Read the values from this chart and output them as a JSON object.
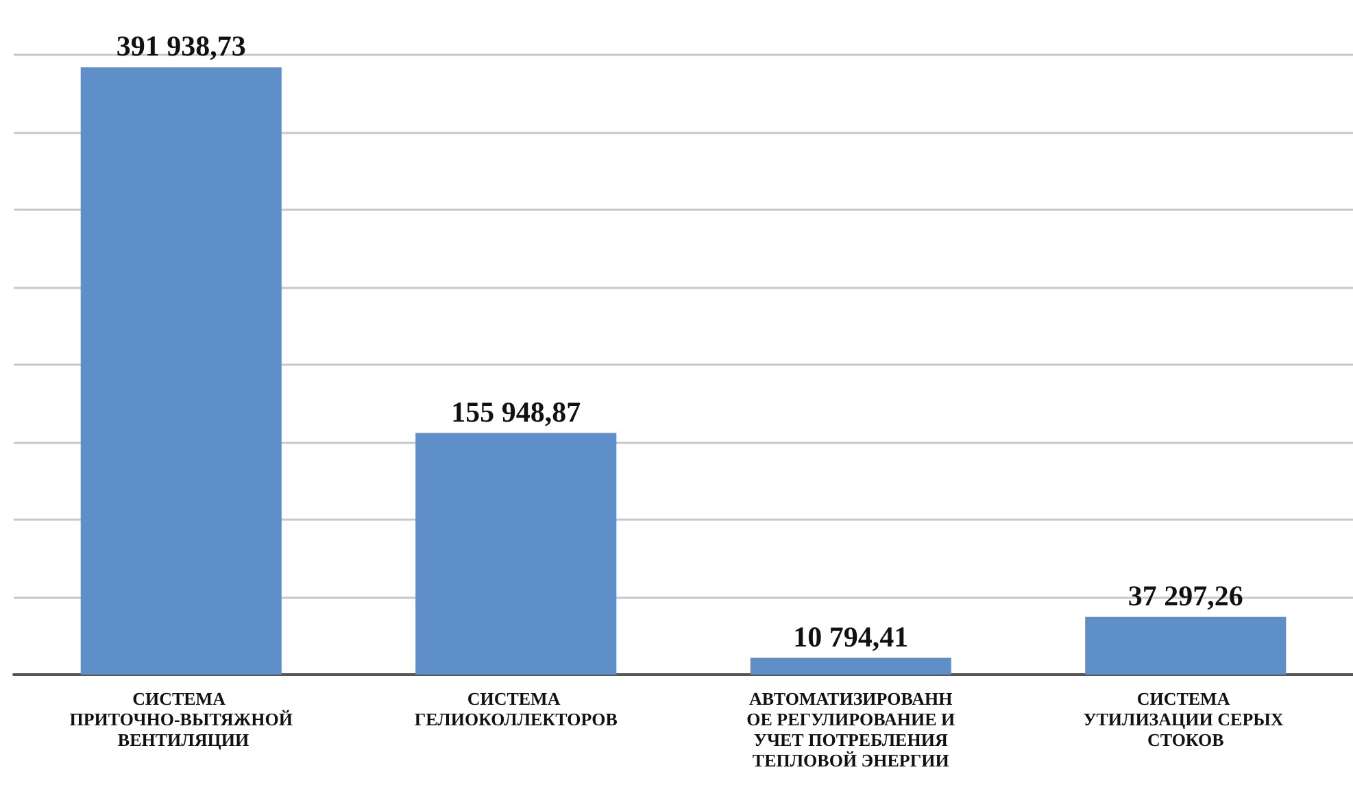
{
  "chart_data": {
    "type": "bar",
    "categories": [
      "СИСТЕМА ПРИТОЧНО-ВЫТЯЖНОЙ ВЕНТИЛЯЦИИ",
      "СИСТЕМА ГЕЛИОКОЛЛЕКТОРОВ",
      "АВТОМАТИЗИРОВАННОЕ РЕГУЛИРОВАНИЕ И УЧЕТ ПОТРЕБЛЕНИЯ ТЕПЛОВОЙ ЭНЕРГИИ",
      "СИСТЕМА УТИЛИЗАЦИИ СЕРЫХ СТОКОВ"
    ],
    "values": [
      391938.73,
      155948.87,
      10794.41,
      37297.26
    ],
    "value_labels": [
      "391 938,73",
      "155 948,87",
      "10 794,41",
      "37 297,26"
    ],
    "color": "#5f8fc9",
    "ylim": [
      0,
      400000
    ],
    "yticks": [
      {
        "value": 0,
        "label": null
      },
      {
        "value": 50000,
        "label": null
      },
      {
        "value": 100000,
        "label": null
      },
      {
        "value": 150000,
        "label": null
      },
      {
        "value": 200000,
        "label": null
      },
      {
        "value": 250000,
        "label": null
      },
      {
        "value": 300000,
        "label": null
      },
      {
        "value": 350000,
        "label": null
      },
      {
        "value": 400000,
        "label": null
      }
    ],
    "grid": "y",
    "tick_labels": "x"
  }
}
